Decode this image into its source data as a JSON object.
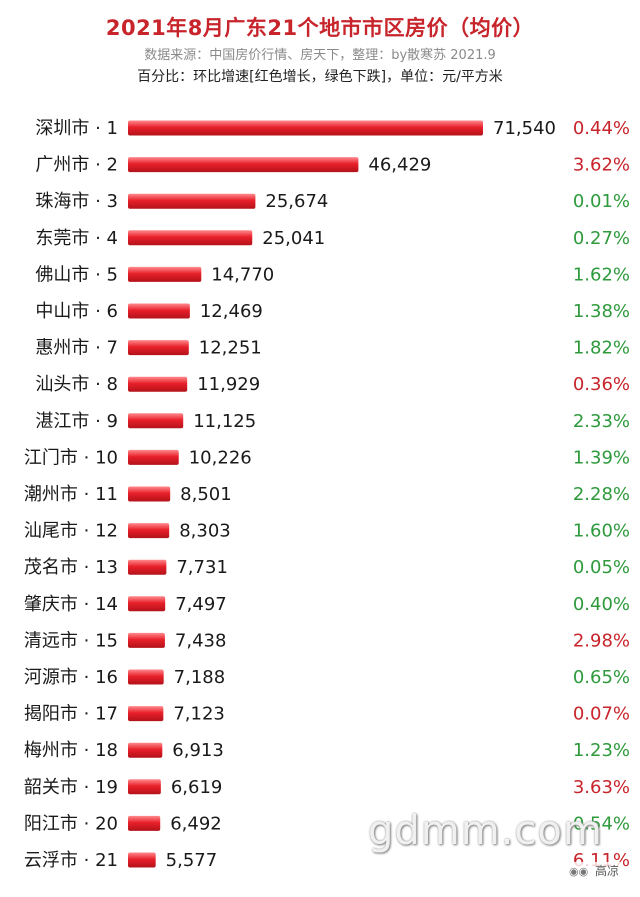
{
  "header": {
    "title": "2021年8月广东21个地市市区房价（均价）",
    "source": "数据来源：中国房价行情、房天下，整理：by散寒苏 2021.9",
    "note": "百分比：环比增速[红色增长，绿色下跌]，单位：元/平方米"
  },
  "watermark": "gdmm.com",
  "account": {
    "icon": "wechat-icon",
    "name": "高凉"
  },
  "colors": {
    "bar": "#e8202a",
    "up": "#c8242b",
    "down": "#2e9a3c",
    "title": "#c8242b"
  },
  "chart_data": {
    "type": "bar",
    "orientation": "horizontal",
    "title": "2021年8月广东21个地市市区房价（均价）",
    "xlabel": "",
    "ylabel": "",
    "unit": "元/平方米",
    "xlim": [
      0,
      71540
    ],
    "categories": [
      "深圳市 · 1",
      "广州市 · 2",
      "珠海市 · 3",
      "东莞市 · 4",
      "佛山市 · 5",
      "中山市 · 6",
      "惠州市 · 7",
      "汕头市 · 8",
      "湛江市 · 9",
      "江门市 · 10",
      "潮州市 · 11",
      "汕尾市 · 12",
      "茂名市 · 13",
      "肇庆市 · 14",
      "清远市 · 15",
      "河源市 · 16",
      "揭阳市 · 17",
      "梅州市 · 18",
      "韶关市 · 19",
      "阳江市 · 20",
      "云浮市 · 21"
    ],
    "values": [
      71540,
      46429,
      25674,
      25041,
      14770,
      12469,
      12251,
      11929,
      11125,
      10226,
      8501,
      8303,
      7731,
      7497,
      7438,
      7188,
      7123,
      6913,
      6619,
      6492,
      5577
    ],
    "value_labels": [
      "71,540",
      "46,429",
      "25,674",
      "25,041",
      "14,770",
      "12,469",
      "12,251",
      "11,929",
      "11,125",
      "10,226",
      "8,501",
      "8,303",
      "7,731",
      "7,497",
      "7,438",
      "7,188",
      "7,123",
      "6,913",
      "6,619",
      "6,492",
      "5,577"
    ],
    "pct_labels": [
      "0.44%",
      "3.62%",
      "0.01%",
      "0.27%",
      "1.62%",
      "1.38%",
      "1.82%",
      "0.36%",
      "2.33%",
      "1.39%",
      "2.28%",
      "1.60%",
      "0.05%",
      "0.40%",
      "2.98%",
      "0.65%",
      "0.07%",
      "1.23%",
      "3.63%",
      "0.54%",
      "6.11%"
    ],
    "pct_direction": [
      "up",
      "up",
      "down",
      "down",
      "down",
      "down",
      "down",
      "up",
      "down",
      "down",
      "down",
      "down",
      "down",
      "down",
      "up",
      "down",
      "up",
      "down",
      "up",
      "down",
      "up"
    ],
    "legend": "none",
    "grid": false
  }
}
